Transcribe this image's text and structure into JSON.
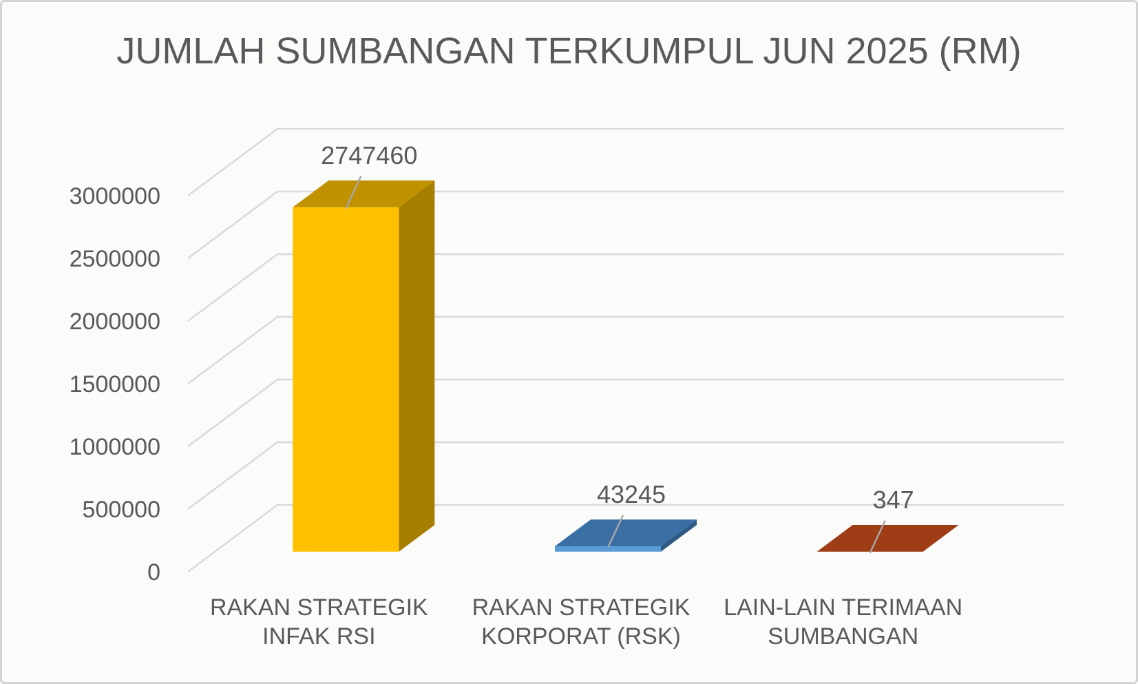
{
  "chart_data": {
    "type": "bar",
    "projection": "3d-oblique",
    "title": "JUMLAH SUMBANGAN TERKUMPUL JUN 2025 (RM)",
    "categories": [
      "RAKAN STRATEGIK INFAK RSI",
      "RAKAN STRATEGIK KORPORAT (RSK)",
      "LAIN-LAIN TERIMAAN SUMBANGAN"
    ],
    "category_lines": [
      [
        "RAKAN STRATEGIK",
        "INFAK RSI"
      ],
      [
        "RAKAN STRATEGIK",
        "KORPORAT (RSK)"
      ],
      [
        "LAIN-LAIN TERIMAAN",
        "SUMBANGAN"
      ]
    ],
    "values": [
      2747460,
      43245,
      347
    ],
    "data_labels": [
      "2747460",
      "43245",
      "347"
    ],
    "y_axis": {
      "min": 0,
      "max": 3000000,
      "step": 500000,
      "ticks": [
        "0",
        "500000",
        "1000000",
        "1500000",
        "2000000",
        "2500000",
        "3000000"
      ]
    },
    "grid": true,
    "legend": false,
    "bar_colors": [
      {
        "front": "#FFC000",
        "top": "#C09200",
        "side": "#A67E00"
      },
      {
        "front": "#5B9BD5",
        "top": "#3A6FA6",
        "side": "#2E5A85"
      },
      {
        "front": "#C55A11",
        "top": "#9E3D16",
        "side": "#7C3011"
      }
    ],
    "colors": {
      "text": "#595959",
      "gridline": "#D9D9D9",
      "leader": "#A6A6A6",
      "background": "#FBFBFA",
      "border": "#D4D4D4"
    }
  }
}
